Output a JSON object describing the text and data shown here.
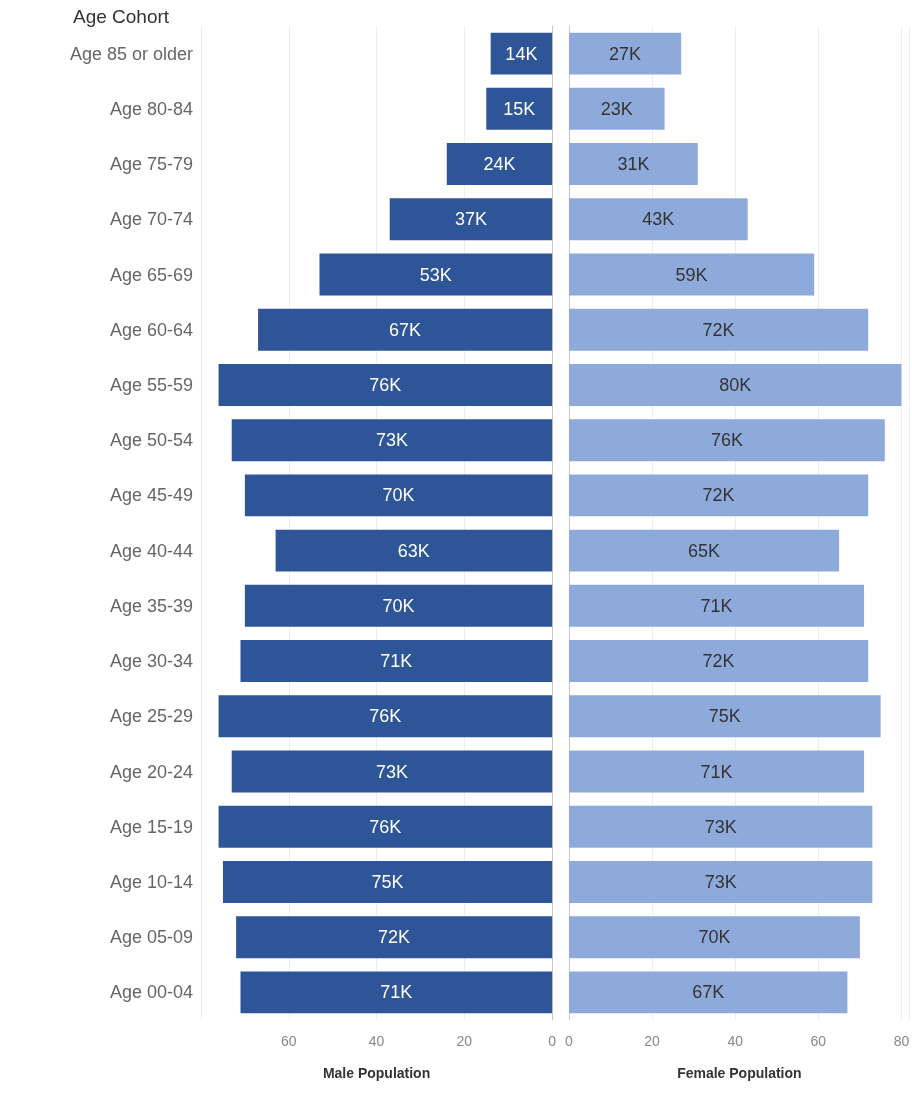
{
  "chart_data": [
    {
      "type": "bar",
      "orientation": "horizontal",
      "ylabel": "Age Cohort",
      "xlabel": "Male Population",
      "categories": [
        "Age 85 or older",
        "Age 80-84",
        "Age 75-79",
        "Age 70-74",
        "Age 65-69",
        "Age 60-64",
        "Age 55-59",
        "Age 50-54",
        "Age 45-49",
        "Age 40-44",
        "Age 35-39",
        "Age 30-34",
        "Age 25-29",
        "Age 20-24",
        "Age 15-19",
        "Age 10-14",
        "Age 05-09",
        "Age 00-04"
      ],
      "values": [
        14,
        15,
        24,
        37,
        53,
        67,
        76,
        73,
        70,
        63,
        70,
        71,
        76,
        73,
        76,
        75,
        72,
        71
      ],
      "value_labels": [
        "14K",
        "15K",
        "24K",
        "37K",
        "53K",
        "67K",
        "76K",
        "73K",
        "70K",
        "63K",
        "70K",
        "71K",
        "76K",
        "73K",
        "76K",
        "75K",
        "72K",
        "71K"
      ],
      "color": "#2e5597",
      "xlim": [
        80,
        0
      ],
      "xticks": [
        60,
        40,
        20,
        0
      ],
      "grid": "x"
    },
    {
      "type": "bar",
      "orientation": "horizontal",
      "xlabel": "Female Population",
      "categories": [
        null,
        null,
        null,
        null,
        null,
        null,
        null,
        null,
        null,
        null,
        null,
        null,
        null,
        null,
        null,
        null,
        null,
        null
      ],
      "values": [
        27,
        23,
        31,
        43,
        59,
        72,
        80,
        76,
        72,
        65,
        71,
        72,
        75,
        71,
        73,
        73,
        70,
        67
      ],
      "value_labels": [
        "27K",
        "23K",
        "31K",
        "43K",
        "59K",
        "72K",
        "80K",
        "76K",
        "72K",
        "65K",
        "71K",
        "72K",
        "75K",
        "71K",
        "73K",
        "73K",
        "70K",
        "67K"
      ],
      "color": "#8eaadb",
      "xlim": [
        0,
        82
      ],
      "xticks": [
        0,
        20,
        40,
        60,
        80
      ],
      "grid": "x"
    }
  ]
}
